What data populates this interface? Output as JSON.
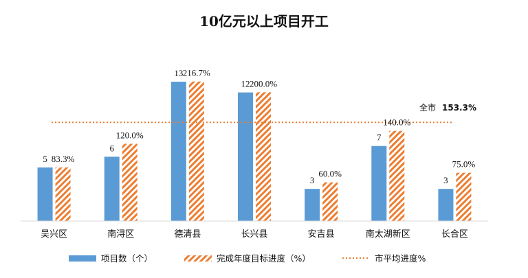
{
  "chart_data": {
    "type": "bar",
    "title": "10亿元以上项目开工",
    "categories": [
      "吴兴区",
      "南浔区",
      "德清县",
      "长兴县",
      "安吉县",
      "南太湖新区",
      "长合区"
    ],
    "series": [
      {
        "name": "项目数（个）",
        "values": [
          5,
          6,
          13,
          12,
          3,
          7,
          3
        ],
        "labels": [
          "5",
          "6",
          "13",
          "12",
          "3",
          "7",
          "3"
        ],
        "color": "#5b9bd5",
        "axis": "count"
      },
      {
        "name": "完成年度目标进度（%）",
        "values": [
          83.3,
          120.0,
          216.7,
          200.0,
          60.0,
          140.0,
          75.0
        ],
        "labels": [
          "83.3%",
          "120.0%",
          "216.7%",
          "200.0%",
          "60.0%",
          "140.0%",
          "75.0%"
        ],
        "color": "#ed7d31",
        "pattern": "diagonal-hatch",
        "axis": "percent"
      }
    ],
    "reference_line": {
      "name": "市平均进度%",
      "label": "全市",
      "value": 153.3,
      "value_label": "153.3%",
      "color": "#ed7d31",
      "style": "dotted"
    },
    "count_axis_range": [
      0,
      15.5
    ],
    "percent_axis_range": [
      0,
      258
    ],
    "axes_visible": false,
    "grid": false,
    "legend_position": "bottom"
  }
}
